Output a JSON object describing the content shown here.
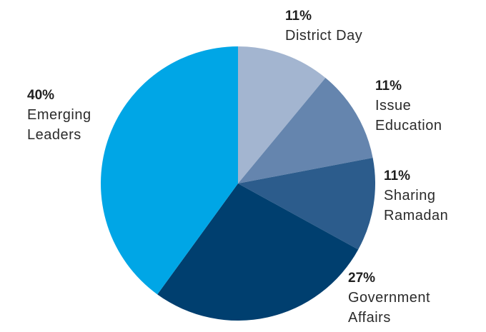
{
  "chart_data": {
    "type": "pie",
    "slices": [
      {
        "percent_label": "11%",
        "label_lines": [
          "District Day"
        ],
        "value": 11,
        "color": "#a3b5d0"
      },
      {
        "percent_label": "11%",
        "label_lines": [
          "Issue",
          "Education"
        ],
        "value": 11,
        "color": "#6585ae"
      },
      {
        "percent_label": "11%",
        "label_lines": [
          "Sharing",
          "Ramadan"
        ],
        "value": 11,
        "color": "#2c5c8c"
      },
      {
        "percent_label": "27%",
        "label_lines": [
          "Government",
          "Affairs"
        ],
        "value": 27,
        "color": "#003f6f"
      },
      {
        "percent_label": "40%",
        "label_lines": [
          "Emerging",
          "Leaders"
        ],
        "value": 40,
        "color": "#00a6e6"
      }
    ]
  }
}
